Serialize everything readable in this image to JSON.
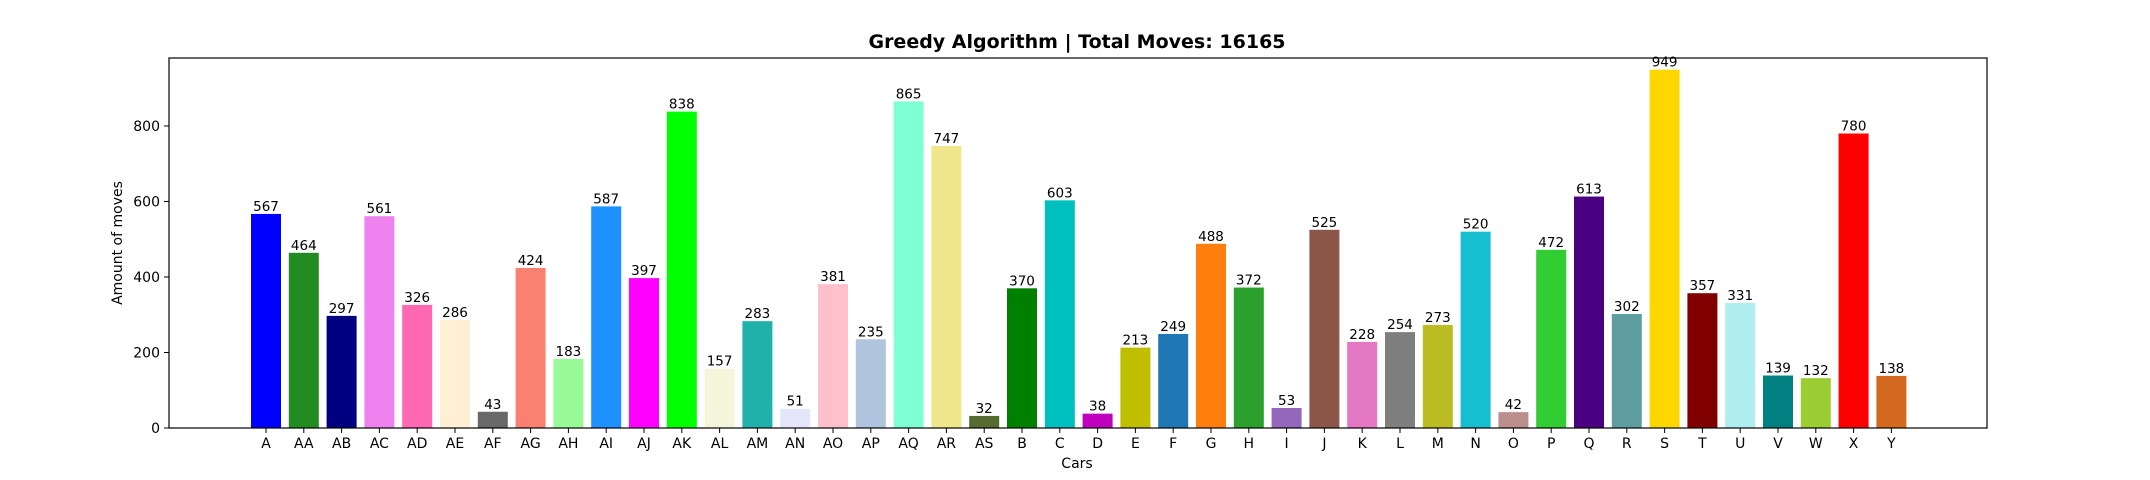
{
  "chart_data": {
    "type": "bar",
    "title": "Greedy Algorithm | Total Moves: 16165",
    "xlabel": "Cars",
    "ylabel": "Amount of moves",
    "ylim": [
      0,
      980
    ],
    "yticks": [
      0,
      200,
      400,
      600,
      800
    ],
    "grid": false,
    "categories": [
      "A",
      "AA",
      "AB",
      "AC",
      "AD",
      "AE",
      "AF",
      "AG",
      "AH",
      "AI",
      "AJ",
      "AK",
      "AL",
      "AM",
      "AN",
      "AO",
      "AP",
      "AQ",
      "AR",
      "AS",
      "B",
      "C",
      "D",
      "E",
      "F",
      "G",
      "H",
      "I",
      "J",
      "K",
      "L",
      "M",
      "N",
      "O",
      "P",
      "Q",
      "R",
      "S",
      "T",
      "U",
      "V",
      "W",
      "X",
      "Y"
    ],
    "values": [
      567,
      464,
      297,
      561,
      326,
      286,
      43,
      424,
      183,
      587,
      397,
      838,
      157,
      283,
      51,
      381,
      235,
      865,
      747,
      32,
      370,
      603,
      38,
      213,
      249,
      488,
      372,
      53,
      525,
      228,
      254,
      273,
      520,
      42,
      472,
      613,
      302,
      949,
      357,
      331,
      139,
      132,
      780,
      138
    ],
    "colors": [
      "#0000ff",
      "#228b22",
      "#000080",
      "#ee82ee",
      "#ff69b4",
      "#ffefd5",
      "#696969",
      "#fa8072",
      "#98fb98",
      "#1e90ff",
      "#ff00ff",
      "#00ff00",
      "#f5f5dc",
      "#20b2aa",
      "#e6e6fa",
      "#ffc0cb",
      "#b0c4de",
      "#7fffd4",
      "#f0e68c",
      "#556b2f",
      "#008000",
      "#00bfbf",
      "#bf00bf",
      "#bfbf00",
      "#1f77b4",
      "#ff7f0e",
      "#2ca02c",
      "#9467bd",
      "#8c564b",
      "#e377c2",
      "#7f7f7f",
      "#bcbd22",
      "#17becf",
      "#bc8f8f",
      "#32cd32",
      "#4b0082",
      "#5f9ea0",
      "#ffd700",
      "#800000",
      "#afeeee",
      "#008080",
      "#9acd32",
      "#ff0000",
      "#d2691e"
    ]
  }
}
